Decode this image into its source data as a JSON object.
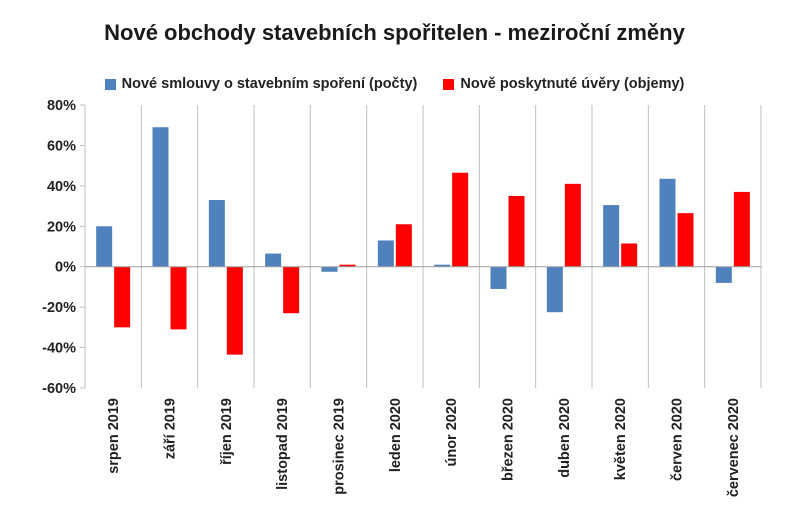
{
  "chart_data": {
    "type": "bar",
    "title": "Nové obchody stavebních spořitelen - meziroční změny",
    "categories": [
      "srpen 2019",
      "září 2019",
      "říjen 2019",
      "listopad 2019",
      "prosinec 2019",
      "leden 2020",
      "únor 2020",
      "březen 2020",
      "duben 2020",
      "květen 2020",
      "červen 2020",
      "červenec 2020"
    ],
    "series": [
      {
        "name": "Nové smlouvy o stavebním spoření (počty)",
        "color": "#4f81bd",
        "values": [
          20,
          69,
          33,
          6.5,
          -2.5,
          13,
          1,
          -11,
          -22.5,
          30.5,
          43.5,
          -8
        ]
      },
      {
        "name": "Nově poskytnuté úvěry (objemy)",
        "color": "#ff0000",
        "values": [
          -30,
          -31,
          -43.5,
          -23,
          1,
          21,
          46.5,
          35,
          41,
          11.5,
          26.5,
          37
        ]
      }
    ],
    "ylim": [
      -60,
      80
    ],
    "yticks": [
      "80%",
      "60%",
      "40%",
      "20%",
      "0%",
      "-20%",
      "-40%",
      "-60%"
    ],
    "ytick_values": [
      80,
      60,
      40,
      20,
      0,
      -20,
      -40,
      -60
    ],
    "grid": "vertical category separators",
    "legend": "top"
  }
}
